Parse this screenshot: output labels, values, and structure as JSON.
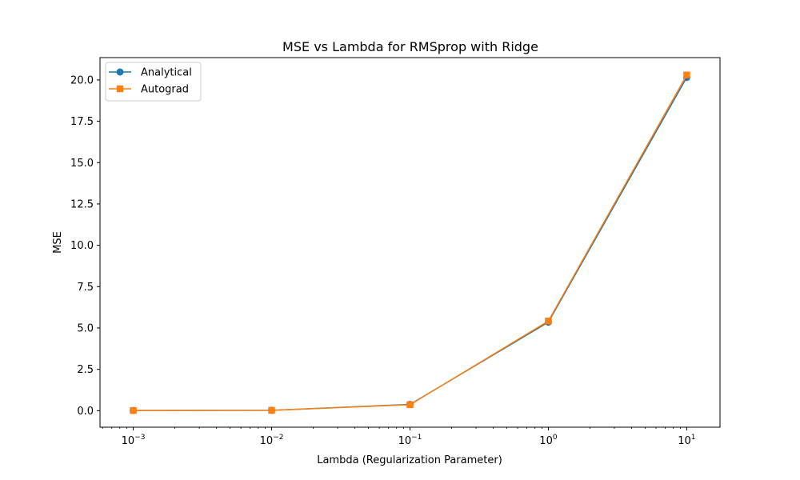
{
  "chart_data": {
    "type": "line",
    "title": "MSE vs Lambda for RMSprop with Ridge",
    "xlabel": "Lambda (Regularization Parameter)",
    "ylabel": "MSE",
    "xscale": "log",
    "xlim": [
      0.000575,
      17.4
    ],
    "ylim": [
      -1.0,
      21.35
    ],
    "grid": false,
    "legend": "top-left",
    "x": [
      0.001,
      0.01,
      0.1,
      1,
      10
    ],
    "x_ticks": [
      {
        "value": 0.001,
        "base": "10",
        "exp": "−3"
      },
      {
        "value": 0.01,
        "base": "10",
        "exp": "−2"
      },
      {
        "value": 0.1,
        "base": "10",
        "exp": "−1"
      },
      {
        "value": 1,
        "base": "10",
        "exp": "0"
      },
      {
        "value": 10,
        "base": "10",
        "exp": "1"
      }
    ],
    "y_ticks": [
      {
        "value": 0.0,
        "label": "0.0"
      },
      {
        "value": 2.5,
        "label": "2.5"
      },
      {
        "value": 5.0,
        "label": "5.0"
      },
      {
        "value": 7.5,
        "label": "7.5"
      },
      {
        "value": 10.0,
        "label": "10.0"
      },
      {
        "value": 12.5,
        "label": "12.5"
      },
      {
        "value": 15.0,
        "label": "15.0"
      },
      {
        "value": 17.5,
        "label": "17.5"
      },
      {
        "value": 20.0,
        "label": "20.0"
      }
    ],
    "series": [
      {
        "name": "Analytical",
        "marker": "circle",
        "color": "#1f77b4",
        "values": [
          0.01,
          0.02,
          0.38,
          5.35,
          20.15
        ]
      },
      {
        "name": "Autograd",
        "marker": "square",
        "color": "#ff7f0e",
        "values": [
          0.01,
          0.02,
          0.36,
          5.42,
          20.3
        ]
      }
    ]
  }
}
